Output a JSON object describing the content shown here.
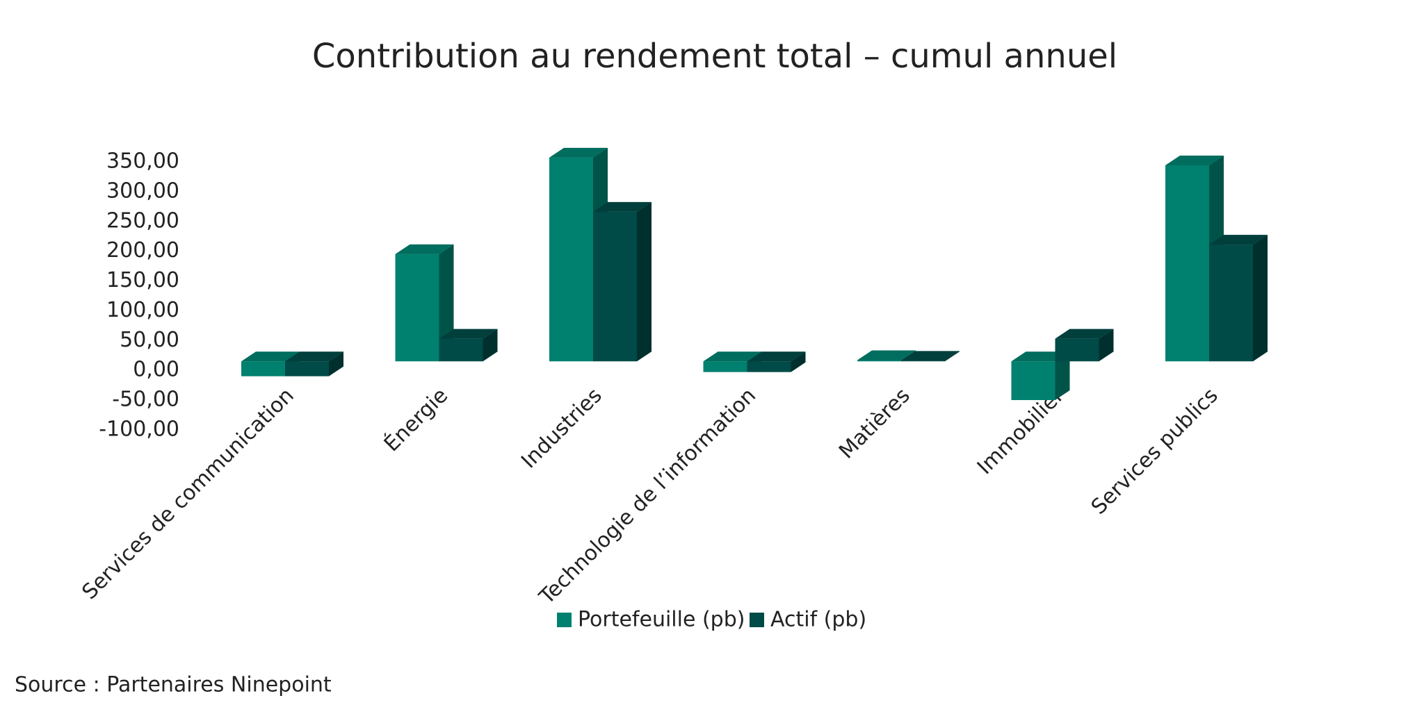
{
  "chart_data": {
    "type": "bar3d",
    "title": "Contribution au rendement total – cumul annuel",
    "categories": [
      "Services de communication",
      "Énergie",
      "Industries",
      "Technologie de l’information",
      "Matières",
      "Immobilier",
      "Services publics"
    ],
    "series": [
      {
        "name": "Portefeuille (pb)",
        "color": "#00806f",
        "values": [
          -25,
          180,
          342,
          -18,
          2,
          -65,
          329
        ]
      },
      {
        "name": "Actif (pb)",
        "color": "#004a47",
        "values": [
          -25,
          38,
          251,
          -18,
          1,
          38,
          196
        ]
      }
    ],
    "ylim": [
      -100,
      350
    ],
    "yticks": [
      {
        "value": -100,
        "label": "-100,00"
      },
      {
        "value": -50,
        "label": "-50,00"
      },
      {
        "value": 0,
        "label": "0,00"
      },
      {
        "value": 50,
        "label": "50,00"
      },
      {
        "value": 100,
        "label": "100,00"
      },
      {
        "value": 150,
        "label": "150,00"
      },
      {
        "value": 200,
        "label": "200,00"
      },
      {
        "value": 250,
        "label": "250,00"
      },
      {
        "value": 300,
        "label": "300,00"
      },
      {
        "value": 350,
        "label": "350,00"
      }
    ],
    "source": "Source : Partenaires Ninepoint"
  }
}
